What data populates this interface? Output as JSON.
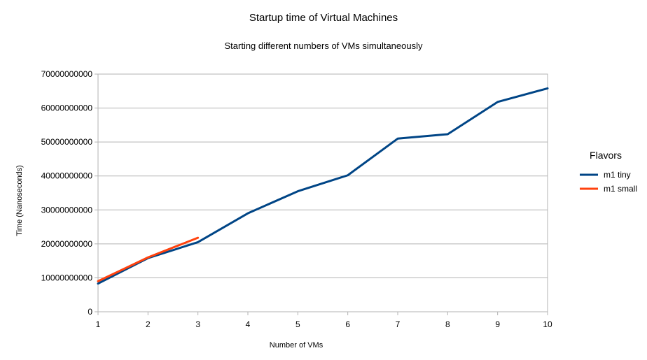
{
  "chart_data": {
    "type": "line",
    "title": "Startup time of Virtual Machines",
    "subtitle": "Starting different numbers of VMs simultaneously",
    "xlabel": "Number of VMs",
    "ylabel": "Time (Nanoseconds)",
    "x": [
      1,
      2,
      3,
      4,
      5,
      6,
      7,
      8,
      9,
      10
    ],
    "x_tick_labels": [
      "1",
      "2",
      "3",
      "4",
      "5",
      "6",
      "7",
      "8",
      "9",
      "10"
    ],
    "y_tick_labels": [
      "0",
      "10000000000",
      "20000000000",
      "30000000000",
      "40000000000",
      "50000000000",
      "60000000000",
      "70000000000"
    ],
    "y_ticks": [
      0,
      10000000000,
      20000000000,
      30000000000,
      40000000000,
      50000000000,
      60000000000,
      70000000000
    ],
    "xlim": [
      1,
      10
    ],
    "ylim": [
      0,
      70000000000
    ],
    "grid": "horizontal",
    "legend": {
      "title": "Flavors",
      "placement": "right"
    },
    "series": [
      {
        "name": "m1 tiny",
        "color": "#004586",
        "x": [
          1,
          2,
          3,
          4,
          5,
          6,
          7,
          8,
          9,
          10
        ],
        "values": [
          8300000000,
          15800000000,
          20500000000,
          29000000000,
          35500000000,
          40200000000,
          51000000000,
          52300000000,
          61800000000,
          65800000000
        ]
      },
      {
        "name": "m1 small",
        "color": "#ff420e",
        "x": [
          1,
          2,
          3
        ],
        "values": [
          9000000000,
          16000000000,
          21800000000
        ]
      }
    ]
  }
}
